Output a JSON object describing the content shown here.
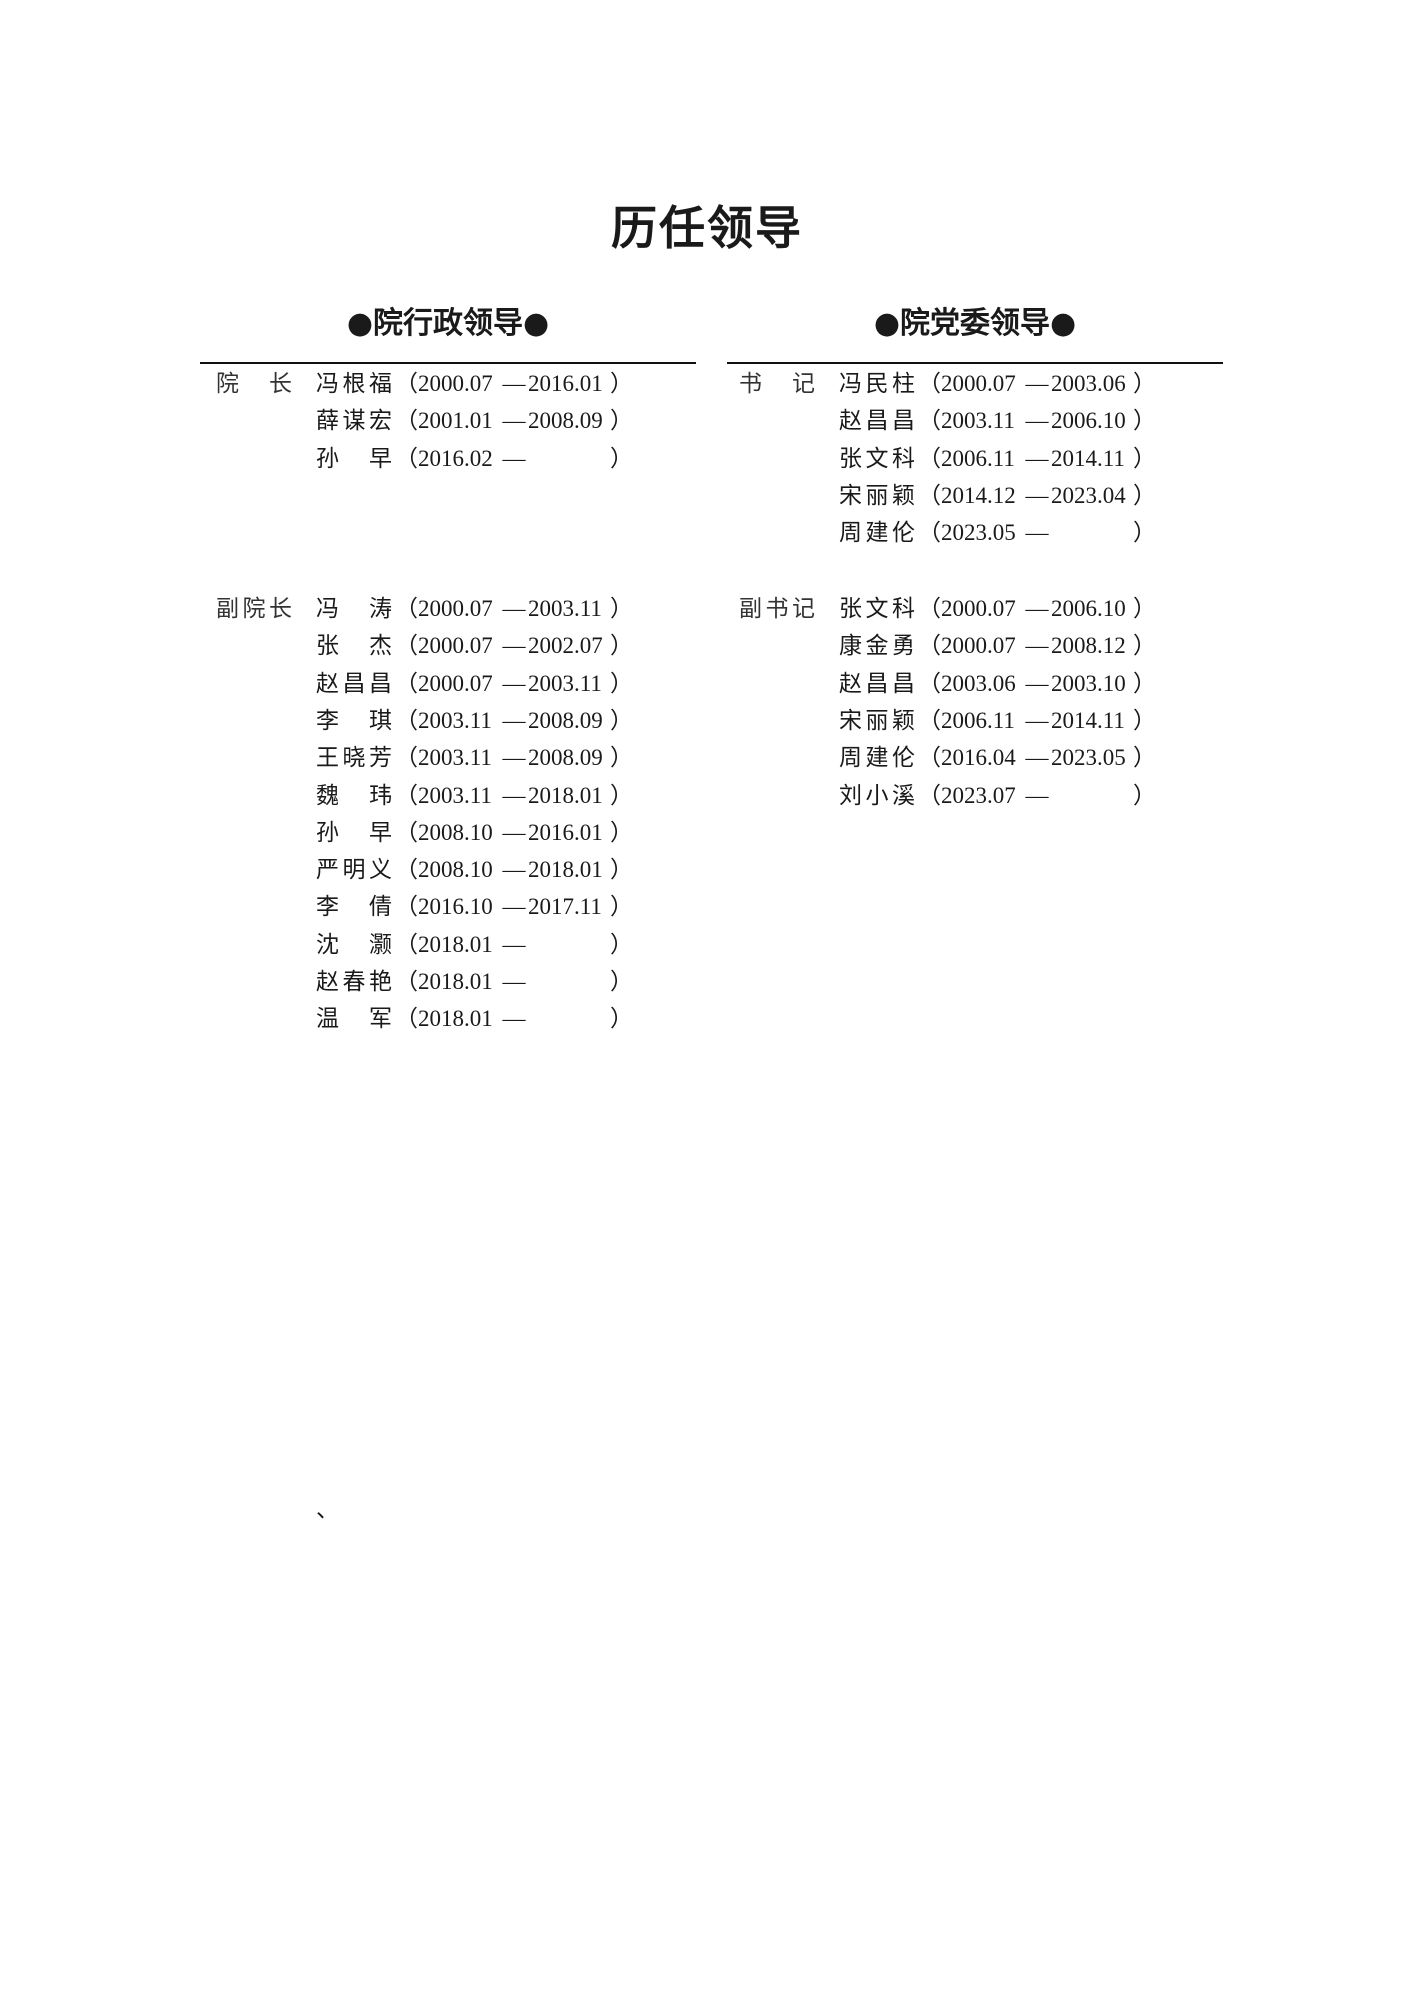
{
  "title": "历任领导",
  "left": {
    "heading": "●院行政领导●",
    "groups": [
      {
        "role": "院长",
        "entries": [
          {
            "name": "冯根福",
            "start": "2000.07",
            "end": "2016.01"
          },
          {
            "name": "薛谋宏",
            "start": "2001.01",
            "end": "2008.09"
          },
          {
            "name": "孙早",
            "start": "2016.02",
            "end": ""
          }
        ]
      },
      {
        "role": "副院长",
        "entries": [
          {
            "name": "冯涛",
            "start": "2000.07",
            "end": "2003.11"
          },
          {
            "name": "张杰",
            "start": "2000.07",
            "end": "2002.07"
          },
          {
            "name": "赵昌昌",
            "start": "2000.07",
            "end": "2003.11"
          },
          {
            "name": "李琪",
            "start": "2003.11",
            "end": "2008.09"
          },
          {
            "name": "王晓芳",
            "start": "2003.11",
            "end": "2008.09"
          },
          {
            "name": "魏玮",
            "start": "2003.11",
            "end": "2018.01"
          },
          {
            "name": "孙早",
            "start": "2008.10",
            "end": "2016.01"
          },
          {
            "name": "严明义",
            "start": "2008.10",
            "end": "2018.01"
          },
          {
            "name": "李倩",
            "start": "2016.10",
            "end": "2017.11"
          },
          {
            "name": "沈灏",
            "start": "2018.01",
            "end": ""
          },
          {
            "name": "赵春艳",
            "start": "2018.01",
            "end": ""
          },
          {
            "name": "温军",
            "start": "2018.01",
            "end": ""
          }
        ]
      }
    ]
  },
  "right": {
    "heading": "●院党委领导●",
    "groups": [
      {
        "role": "书记",
        "entries": [
          {
            "name": "冯民柱",
            "start": "2000.07",
            "end": "2003.06"
          },
          {
            "name": "赵昌昌",
            "start": "2003.11",
            "end": "2006.10"
          },
          {
            "name": "张文科",
            "start": "2006.11",
            "end": "2014.11"
          },
          {
            "name": "宋丽颖",
            "start": "2014.12",
            "end": "2023.04"
          },
          {
            "name": "周建伦",
            "start": "2023.05",
            "end": ""
          }
        ]
      },
      {
        "role": "副书记",
        "entries": [
          {
            "name": "张文科",
            "start": "2000.07",
            "end": "2006.10"
          },
          {
            "name": "康金勇",
            "start": "2000.07",
            "end": "2008.12"
          },
          {
            "name": "赵昌昌",
            "start": "2003.06",
            "end": "2003.10"
          },
          {
            "name": "宋丽颖",
            "start": "2006.11",
            "end": "2014.11"
          },
          {
            "name": "周建伦",
            "start": "2016.04",
            "end": "2023.05"
          },
          {
            "name": "刘小溪",
            "start": "2023.07",
            "end": ""
          }
        ]
      }
    ]
  },
  "punct": {
    "lparen": "（",
    "rparen": "）",
    "dash": "—"
  },
  "stray_mark": "、"
}
